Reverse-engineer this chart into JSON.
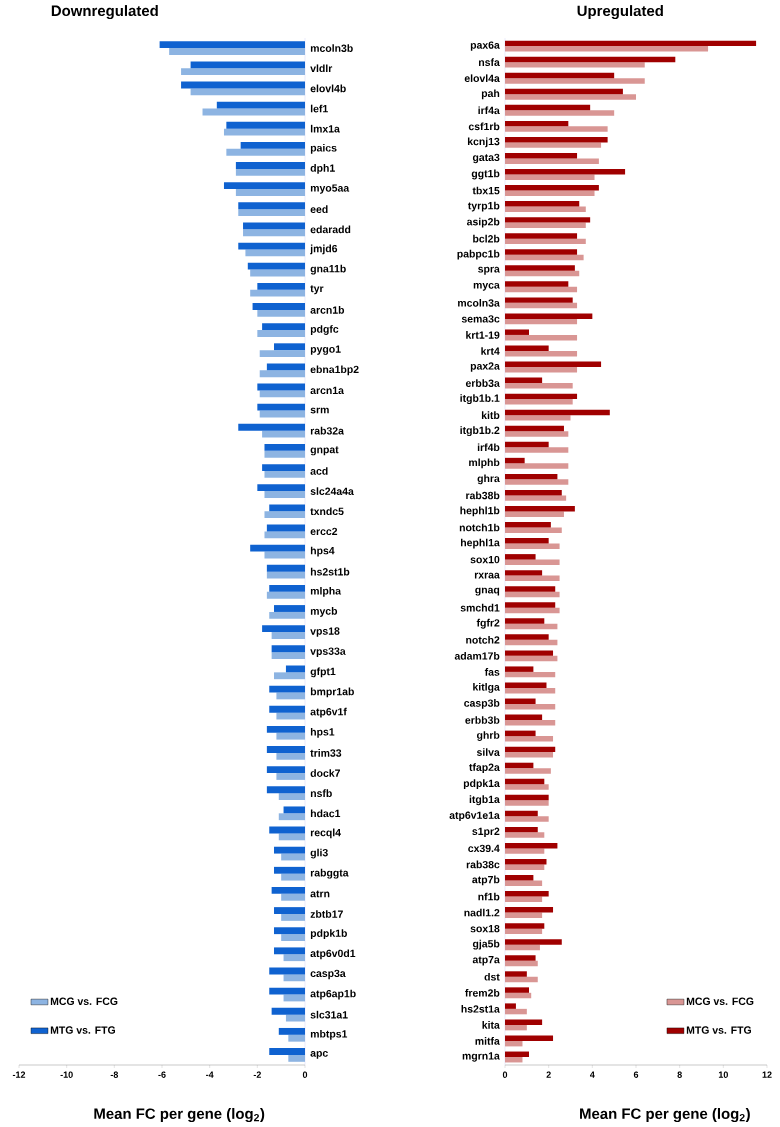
{
  "chart_data": [
    {
      "type": "bar",
      "orientation": "horizontal",
      "title": "Downregulated",
      "xlabel": "Mean FC per gene (log$_{2}$)",
      "categories": [
        "mcoln3b",
        "vldlr",
        "elovl4b",
        "lef1",
        "lmx1a",
        "paics",
        "dph1",
        "myo5aa",
        "eed",
        "edaradd",
        "jmjd6",
        "gna11b",
        "tyr",
        "arcn1b",
        "pdgfc",
        "pygo1",
        "ebna1bp2",
        "arcn1a",
        "srm",
        "rab32a",
        "gnpat",
        "acd",
        "slc24a4a",
        "txndc5",
        "ercc2",
        "hps4",
        "hs2st1b",
        "mlpha",
        "mycb",
        "vps18",
        "vps33a",
        "gfpt1",
        "bmpr1ab",
        "atp6v1f",
        "hps1",
        "trim33",
        "dock7",
        "nsfb",
        "hdac1",
        "recql4",
        "gli3",
        "rabggta",
        "atrn",
        "zbtb17",
        "pdpk1b",
        "atp6v0d1",
        "casp3a",
        "atp6ap1b",
        "slc31a1",
        "mbtps1",
        "apc"
      ],
      "series": [
        {
          "name": "MCG vs. FCG",
          "color": "#8db4e2",
          "values": [
            -5.7,
            -5.2,
            -4.8,
            -4.3,
            -3.4,
            -3.3,
            -2.9,
            -2.9,
            -2.8,
            -2.6,
            -2.5,
            -2.3,
            -2.3,
            -2.0,
            -2.0,
            -1.9,
            -1.9,
            -1.9,
            -1.9,
            -1.8,
            -1.7,
            -1.7,
            -1.7,
            -1.7,
            -1.7,
            -1.7,
            -1.6,
            -1.6,
            -1.5,
            -1.4,
            -1.4,
            -1.3,
            -1.2,
            -1.2,
            -1.2,
            -1.2,
            -1.2,
            -1.1,
            -1.1,
            -1.1,
            -1.0,
            -1.0,
            -1.0,
            -1.0,
            -1.0,
            -0.9,
            -0.9,
            -0.9,
            -0.8,
            -0.7,
            -0.7
          ]
        },
        {
          "name": "MTG vs. FTG",
          "color": "#0f62d0",
          "values": [
            -6.1,
            -4.8,
            -5.2,
            -3.7,
            -3.3,
            -2.7,
            -2.9,
            -3.4,
            -2.8,
            -2.6,
            -2.8,
            -2.4,
            -2.0,
            -2.2,
            -1.8,
            -1.3,
            -1.6,
            -2.0,
            -2.0,
            -2.8,
            -1.7,
            -1.8,
            -2.0,
            -1.5,
            -1.6,
            -2.3,
            -1.6,
            -1.5,
            -1.3,
            -1.8,
            -1.4,
            -0.8,
            -1.5,
            -1.5,
            -1.6,
            -1.6,
            -1.6,
            -1.6,
            -0.9,
            -1.5,
            -1.3,
            -1.3,
            -1.4,
            -1.3,
            -1.3,
            -1.3,
            -1.5,
            -1.5,
            -1.4,
            -1.1,
            -1.5
          ]
        }
      ],
      "xlim": [
        -12,
        0
      ],
      "xticks": [
        -12,
        -10,
        -8,
        -6,
        -4,
        -2,
        0
      ],
      "legend": "bottom left"
    },
    {
      "type": "bar",
      "orientation": "horizontal",
      "title": "Upregulated",
      "xlabel": "Mean FC per gene (log$_{2}$)",
      "categories": [
        "pax6a",
        "nsfa",
        "elovl4a",
        "pah",
        "irf4a",
        "csf1rb",
        "kcnj13",
        "gata3",
        "ggt1b",
        "tbx15",
        "tyrp1b",
        "asip2b",
        "bcl2b",
        "pabpc1b",
        "spra",
        "myca",
        "mcoln3a",
        "sema3c",
        "krt1-19",
        "krt4",
        "pax2a",
        "erbb3a",
        "itgb1b.1",
        "kitb",
        "itgb1b.2",
        "irf4b",
        "mlphb",
        "ghra",
        "rab38b",
        "hephl1b",
        "notch1b",
        "hephl1a",
        "sox10",
        "rxraa",
        "gnaq",
        "smchd1",
        "fgfr2",
        "notch2",
        "adam17b",
        "fas",
        "kitlga",
        "casp3b",
        "erbb3b",
        "ghrb",
        "silva",
        "tfap2a",
        "pdpk1a",
        "itgb1a",
        "atp6v1e1a",
        "s1pr2",
        "cx39.4",
        "rab38c",
        "atp7b",
        "nf1b",
        "nadl1.2",
        "sox18",
        "gja5b",
        "atp7a",
        "dst",
        "frem2b",
        "hs2st1a",
        "kita",
        "mitfa",
        "mgrn1a"
      ],
      "series": [
        {
          "name": "MCG vs. FCG",
          "color": "#d99694",
          "values": [
            9.3,
            6.4,
            6.4,
            6.0,
            5.0,
            4.7,
            4.4,
            4.3,
            4.1,
            4.1,
            3.7,
            3.7,
            3.7,
            3.6,
            3.4,
            3.3,
            3.3,
            3.3,
            3.3,
            3.3,
            3.3,
            3.1,
            3.1,
            3.0,
            2.9,
            2.9,
            2.9,
            2.9,
            2.8,
            2.7,
            2.6,
            2.5,
            2.5,
            2.5,
            2.5,
            2.5,
            2.4,
            2.4,
            2.4,
            2.3,
            2.3,
            2.3,
            2.3,
            2.2,
            2.2,
            2.1,
            2.0,
            2.0,
            2.0,
            1.8,
            1.8,
            1.8,
            1.7,
            1.7,
            1.7,
            1.7,
            1.6,
            1.5,
            1.5,
            1.2,
            1.0,
            1.0,
            0.8,
            0.8
          ]
        },
        {
          "name": "MTG vs. FTG",
          "color": "#a00000",
          "values": [
            11.5,
            7.8,
            5.0,
            5.4,
            3.9,
            2.9,
            4.7,
            3.3,
            5.5,
            4.3,
            3.4,
            3.9,
            3.3,
            3.3,
            3.2,
            2.9,
            3.1,
            4.0,
            1.1,
            2.0,
            4.4,
            1.7,
            3.3,
            4.8,
            2.7,
            2.0,
            0.9,
            2.4,
            2.6,
            3.2,
            2.1,
            2.0,
            1.4,
            1.7,
            2.3,
            2.3,
            1.8,
            2.0,
            2.2,
            1.3,
            1.9,
            1.4,
            1.7,
            1.4,
            2.3,
            1.3,
            1.8,
            2.0,
            1.5,
            1.5,
            2.4,
            1.9,
            1.3,
            2.0,
            2.2,
            1.8,
            2.6,
            1.4,
            1.0,
            1.1,
            0.5,
            1.7,
            2.2,
            1.1
          ]
        }
      ],
      "xlim": [
        0,
        12
      ],
      "xticks": [
        0,
        2,
        4,
        6,
        8,
        10,
        12
      ],
      "legend": "bottom right"
    }
  ]
}
